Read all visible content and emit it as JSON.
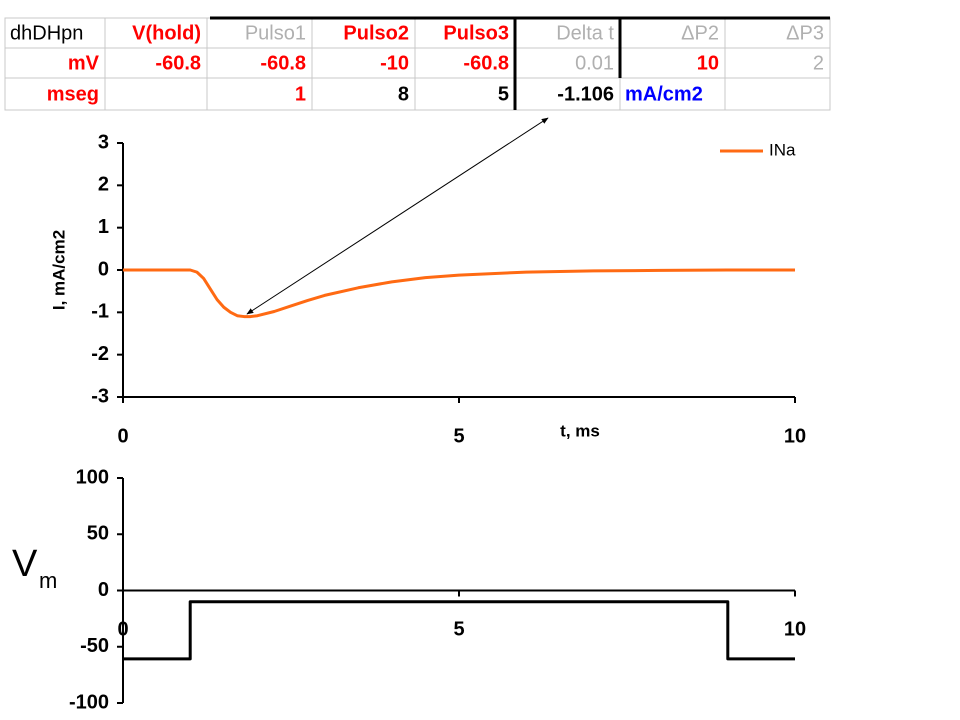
{
  "table": {
    "rows": [
      [
        "dhDHpn",
        "V(hold)",
        "Pulso1",
        "Pulso2",
        "Pulso3",
        "Delta t",
        "ΔP2",
        "ΔP3"
      ],
      [
        "mV",
        "-60.8",
        "-60.8",
        "-10",
        "-60.8",
        "0.01",
        "10",
        "2"
      ],
      [
        "mseg",
        null,
        "1",
        "8",
        "5",
        "-1.106",
        "mA/cm2",
        null
      ]
    ],
    "colors": [
      [
        "#000000",
        "#ff0000",
        "#b0b0b0",
        "#ff0000",
        "#ff0000",
        "#b0b0b0",
        "#b0b0b0",
        "#b0b0b0"
      ],
      [
        "#ff0000",
        "#ff0000",
        "#ff0000",
        "#ff0000",
        "#ff0000",
        "#b0b0b0",
        "#ff0000",
        "#b0b0b0"
      ],
      [
        "#ff0000",
        "#000000",
        "#ff0000",
        "#000000",
        "#000000",
        "#000000",
        "#0000ff",
        "#000000"
      ]
    ]
  },
  "chart_data": [
    {
      "type": "line",
      "xlabel": "t, ms",
      "ylabel": "I, mA/cm2",
      "x": [
        0,
        0.5,
        1,
        1.1,
        1.2,
        1.3,
        1.4,
        1.5,
        1.6,
        1.7,
        1.8,
        1.9,
        2,
        2.25,
        2.5,
        2.75,
        3,
        3.5,
        4,
        4.5,
        5,
        6,
        7,
        8,
        9,
        10
      ],
      "series": [
        {
          "name": "INa",
          "color": "#ff6a13",
          "values": [
            0,
            0,
            0,
            -0.05,
            -0.2,
            -0.45,
            -0.7,
            -0.88,
            -1.0,
            -1.08,
            -1.1,
            -1.1,
            -1.08,
            -0.98,
            -0.85,
            -0.72,
            -0.6,
            -0.42,
            -0.28,
            -0.18,
            -0.12,
            -0.05,
            -0.02,
            -0.01,
            0,
            0
          ]
        }
      ],
      "xlim": [
        0,
        10
      ],
      "xticks": [
        0,
        5,
        10
      ],
      "ylim": [
        -3,
        3
      ],
      "yticks": [
        -3,
        -2,
        -1,
        0,
        1,
        2,
        3
      ],
      "legend": "top-right"
    },
    {
      "type": "line",
      "ylabel": "V",
      "ylabel_sub": "m",
      "x": [
        0,
        1,
        1,
        9,
        9,
        10
      ],
      "values": [
        -60.8,
        -60.8,
        -10,
        -10,
        -60.8,
        -60.8
      ],
      "color": "#000000",
      "xlim": [
        0,
        10
      ],
      "xticks": [
        0,
        5,
        10
      ],
      "ylim": [
        -100,
        100
      ],
      "yticks": [
        -100,
        -50,
        0,
        50,
        100
      ]
    }
  ]
}
